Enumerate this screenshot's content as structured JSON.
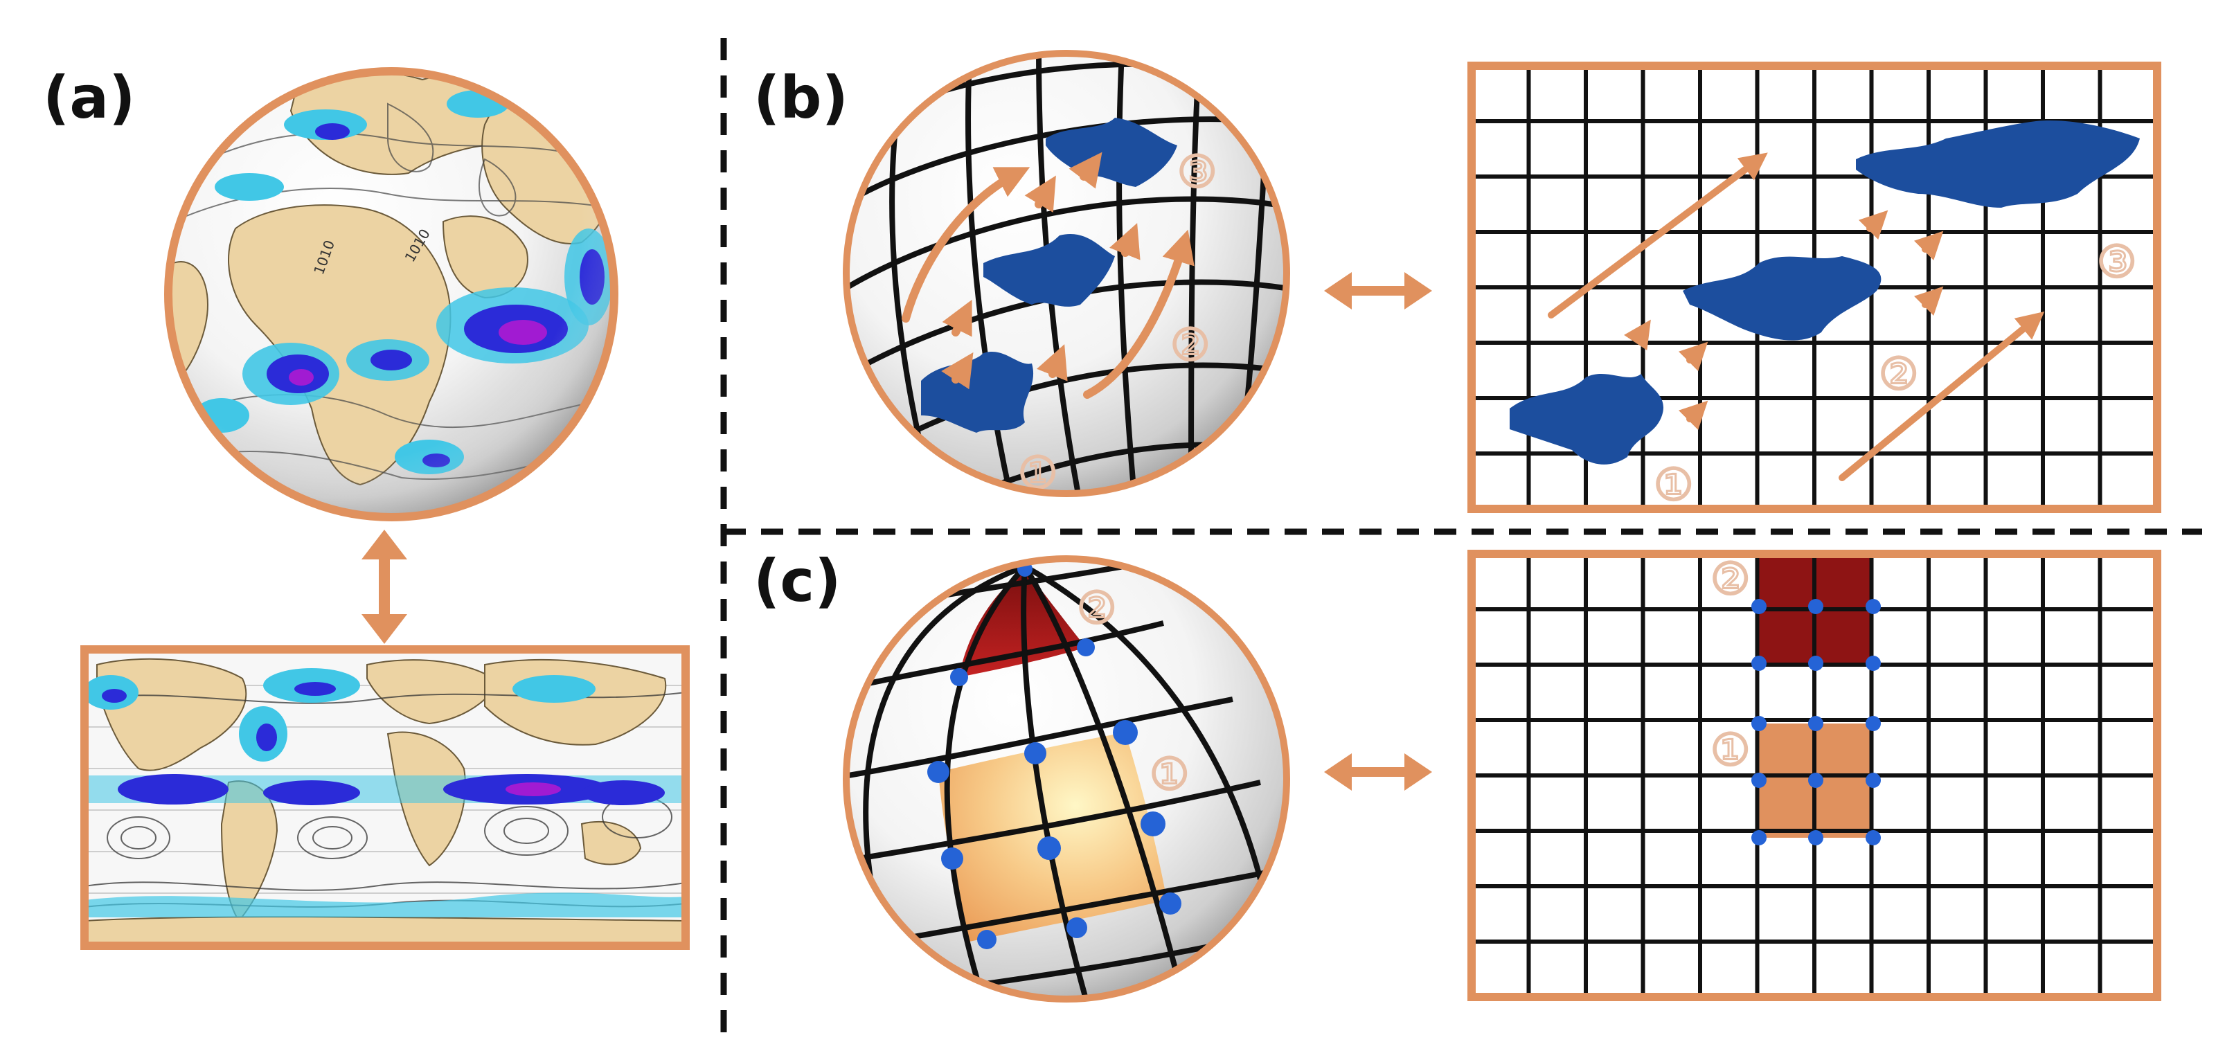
{
  "panels": {
    "a": {
      "label": "(a)"
    },
    "b": {
      "label": "(b)",
      "markers": [
        "①",
        "②",
        "③"
      ]
    },
    "c": {
      "label": "(c)",
      "markers": [
        "①",
        "②"
      ]
    }
  },
  "map_isobar_labels": [
    "1010",
    "1010",
    "1010"
  ],
  "colors": {
    "frame": "#e0915e",
    "arrow": "#e0915e",
    "cloud": "#1c4e9e",
    "land": "#ecd3a3",
    "precip_light": "#41c7e6",
    "precip_heavy": "#2b2bd8",
    "precip_extreme": "#a11bd2",
    "highlight_upper": "#9b1717",
    "highlight_lower": "#f0a766",
    "node": "#2563d6",
    "grid": "#111111",
    "circled_number": "#e8bfa6"
  },
  "icons": {
    "arrow": "double-headed-arrow-icon",
    "node": "grid-node-dot-icon"
  }
}
